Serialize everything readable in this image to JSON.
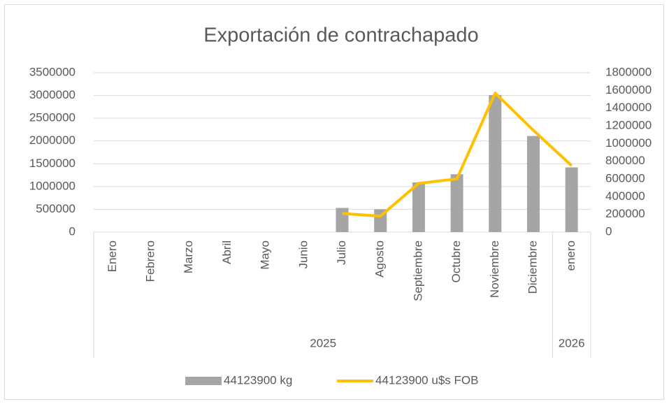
{
  "chart_data": {
    "type": "bar",
    "title": "Exportación de contrachapado",
    "groups": [
      {
        "label": "2025",
        "categories": [
          "Enero",
          "Febrero",
          "Marzo",
          "Abril",
          "Mayo",
          "Junio",
          "Julio",
          "Agosto",
          "Septiembre",
          "Octubre",
          "Noviembre",
          "Diciembre"
        ]
      },
      {
        "label": "2026",
        "categories": [
          "enero"
        ]
      }
    ],
    "series": [
      {
        "name": "44123900 kg",
        "type": "bar",
        "color": "#a5a5a5",
        "values": [
          null,
          null,
          null,
          null,
          null,
          null,
          530000,
          500000,
          1090000,
          1270000,
          3010000,
          2110000,
          1420000
        ]
      },
      {
        "name": "44123900 u$s FOB",
        "type": "line",
        "axis": "y2",
        "color": "#ffc000",
        "values": [
          null,
          null,
          null,
          null,
          null,
          null,
          210000,
          180000,
          550000,
          600000,
          1570000,
          1150000,
          750000
        ]
      }
    ],
    "ylim": [
      0,
      3500000
    ],
    "yticks": [
      0,
      500000,
      1000000,
      1500000,
      2000000,
      2500000,
      3000000,
      3500000
    ],
    "y2lim": [
      0,
      1800000
    ],
    "y2ticks": [
      0,
      200000,
      400000,
      600000,
      800000,
      1000000,
      1200000,
      1400000,
      1600000,
      1800000
    ],
    "grid": true,
    "legend": "bottom"
  }
}
